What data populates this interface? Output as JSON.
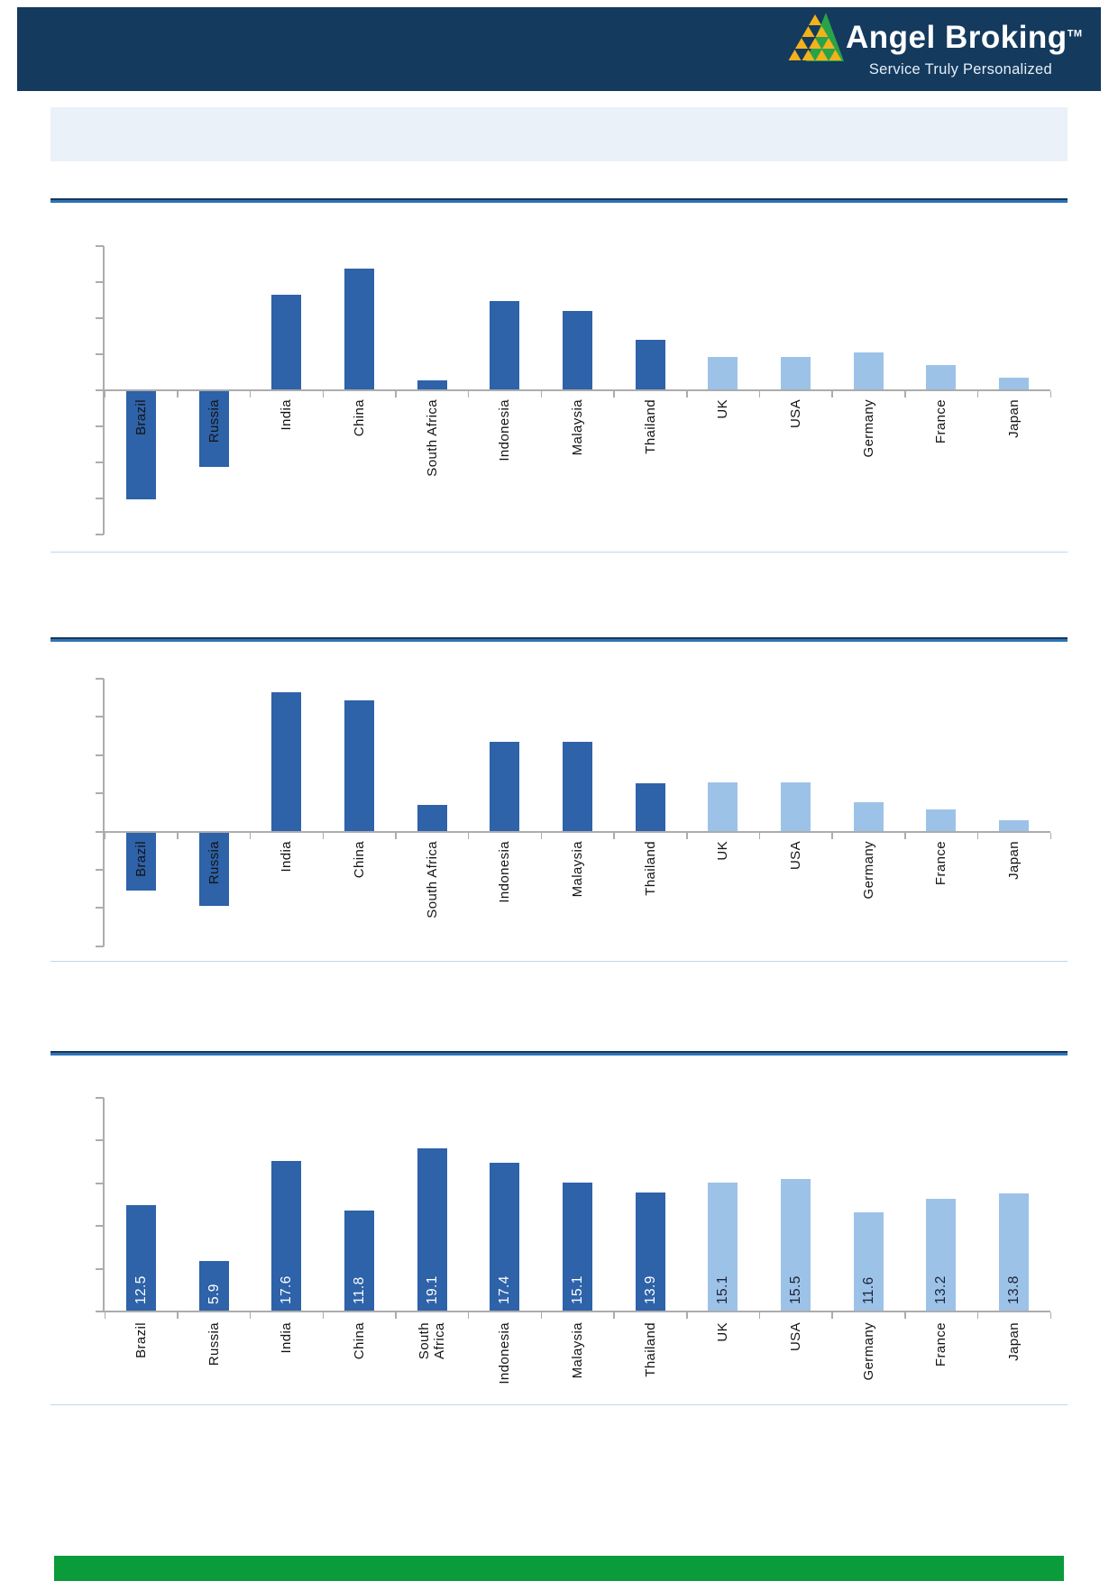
{
  "header": {
    "brand": "Angel Broking",
    "trademark": "TM",
    "tagline": "Service Truly Personalized",
    "colors": {
      "navy": "#143A5E",
      "logo_yellow": "#F2B21D",
      "logo_green": "#2AA348"
    }
  },
  "title_box": {
    "visible_text": ""
  },
  "palette": {
    "dark": "#2E62A9",
    "light": "#9DC2E8",
    "axis": "#ACACAC",
    "category_label": "#141414",
    "value_on_dark": "#FFFFFF",
    "value_on_light": "#1B2437",
    "section_rule_top": "#17375E",
    "section_rule_main": "#2E74B5",
    "section_divider": "#BDD7EE",
    "footer_green": "#0A9B3B"
  },
  "chart_data": [
    {
      "id": "chart-1",
      "type": "bar",
      "title": "",
      "categories": [
        "Brazil",
        "Russia",
        "India",
        "China",
        "South Africa",
        "Indonesia",
        "Malaysia",
        "Thailand",
        "UK",
        "USA",
        "Germany",
        "France",
        "Japan"
      ],
      "values": [
        -3.0,
        -2.1,
        2.65,
        3.38,
        0.28,
        2.48,
        2.2,
        1.4,
        0.93,
        0.93,
        1.05,
        0.7,
        0.35
      ],
      "value_unit": "y-axis tick units (axis tick labels not visible in image)",
      "groups": [
        "dark",
        "dark",
        "dark",
        "dark",
        "dark",
        "dark",
        "dark",
        "dark",
        "light",
        "light",
        "light",
        "light",
        "light"
      ],
      "value_labels": null,
      "ylim_ticks": {
        "above_zero": 4,
        "below_zero": 4,
        "tick_labels_visible": false
      },
      "grid": false,
      "legend": false
    },
    {
      "id": "chart-2",
      "type": "bar",
      "title": "",
      "categories": [
        "Brazil",
        "Russia",
        "India",
        "China",
        "South Africa",
        "Indonesia",
        "Malaysia",
        "Thailand",
        "UK",
        "USA",
        "Germany",
        "France",
        "Japan"
      ],
      "values": [
        -1.5,
        -1.91,
        3.65,
        3.44,
        0.7,
        2.35,
        2.36,
        1.27,
        1.29,
        1.3,
        0.78,
        0.6,
        0.31
      ],
      "value_unit": "y-axis tick units (axis tick labels not visible in image)",
      "groups": [
        "dark",
        "dark",
        "dark",
        "dark",
        "dark",
        "dark",
        "dark",
        "dark",
        "light",
        "light",
        "light",
        "light",
        "light"
      ],
      "value_labels": null,
      "ylim_ticks": {
        "above_zero": 4,
        "below_zero": 3,
        "tick_labels_visible": false
      },
      "grid": false,
      "legend": false
    },
    {
      "id": "chart-3",
      "type": "bar",
      "title": "",
      "categories": [
        "Brazil",
        "Russia",
        "India",
        "China",
        "South\nAfrica",
        "Indonesia",
        "Malaysia",
        "Thailand",
        "UK",
        "USA",
        "Germany",
        "France",
        "Japan"
      ],
      "values": [
        12.5,
        5.9,
        17.6,
        11.8,
        19.1,
        17.4,
        15.1,
        13.9,
        15.1,
        15.5,
        11.6,
        13.2,
        13.8
      ],
      "groups": [
        "dark",
        "dark",
        "dark",
        "dark",
        "dark",
        "dark",
        "dark",
        "dark",
        "light",
        "light",
        "light",
        "light",
        "light"
      ],
      "value_labels": [
        "12.5",
        "5.9",
        "17.6",
        "11.8",
        "19.1",
        "17.4",
        "15.1",
        "13.9",
        "15.1",
        "15.5",
        "11.6",
        "13.2",
        "13.8"
      ],
      "ylim_ticks": {
        "min": 0,
        "max": 25,
        "step": 5,
        "tick_labels_visible": false
      },
      "grid": false,
      "legend": false
    }
  ]
}
